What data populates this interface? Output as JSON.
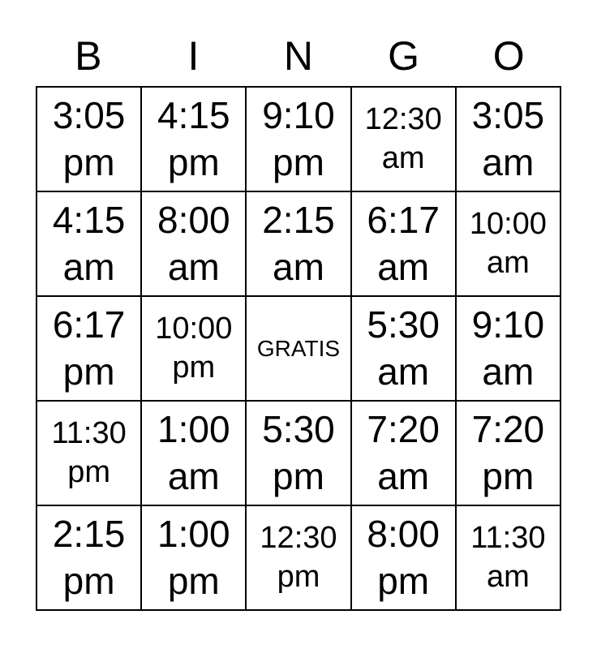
{
  "page": {
    "background_color": "#ffffff",
    "text_color": "#000000",
    "border_color": "#000000"
  },
  "header": {
    "letters": [
      "B",
      "I",
      "N",
      "G",
      "O"
    ]
  },
  "grid": {
    "free_space_label": "GRATIS",
    "rows": [
      [
        {
          "t": "3:05",
          "p": "pm"
        },
        {
          "t": "4:15",
          "p": "pm"
        },
        {
          "t": "9:10",
          "p": "pm"
        },
        {
          "t": "12:30",
          "p": "am"
        },
        {
          "t": "3:05",
          "p": "am"
        }
      ],
      [
        {
          "t": "4:15",
          "p": "am"
        },
        {
          "t": "8:00",
          "p": "am"
        },
        {
          "t": "2:15",
          "p": "am"
        },
        {
          "t": "6:17",
          "p": "am"
        },
        {
          "t": "10:00",
          "p": "am"
        }
      ],
      [
        {
          "t": "6:17",
          "p": "pm"
        },
        {
          "t": "10:00",
          "p": "pm"
        },
        {
          "t": "GRATIS",
          "p": ""
        },
        {
          "t": "5:30",
          "p": "am"
        },
        {
          "t": "9:10",
          "p": "am"
        }
      ],
      [
        {
          "t": "11:30",
          "p": "pm"
        },
        {
          "t": "1:00",
          "p": "am"
        },
        {
          "t": "5:30",
          "p": "pm"
        },
        {
          "t": "7:20",
          "p": "am"
        },
        {
          "t": "7:20",
          "p": "pm"
        }
      ],
      [
        {
          "t": "2:15",
          "p": "pm"
        },
        {
          "t": "1:00",
          "p": "pm"
        },
        {
          "t": "12:30",
          "p": "pm"
        },
        {
          "t": "8:00",
          "p": "pm"
        },
        {
          "t": "11:30",
          "p": "am"
        }
      ]
    ]
  }
}
